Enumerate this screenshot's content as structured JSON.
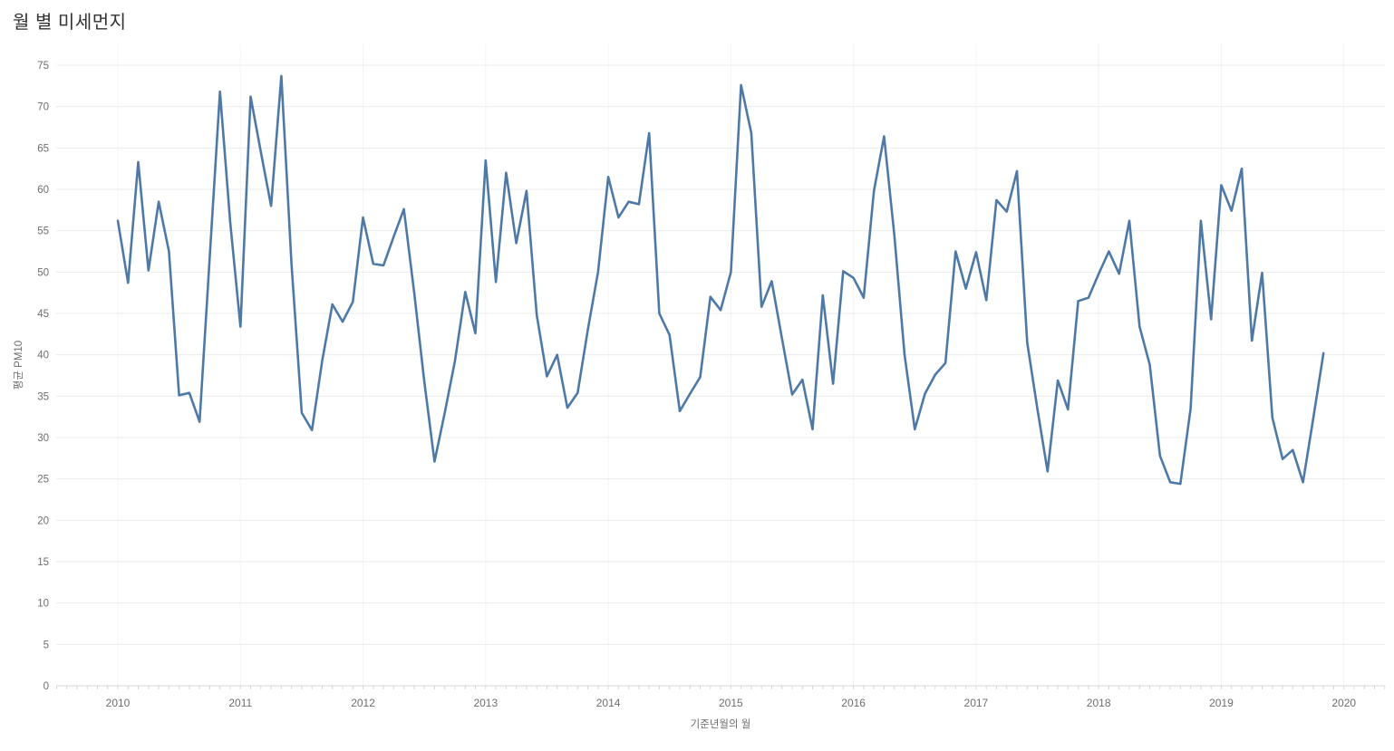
{
  "title": "월 별 미세먼지",
  "colors": {
    "line": "#4e79a7",
    "grid": "#ebebeb",
    "year_grid": "#f4f4f4",
    "axis_line": "#d7d7d7",
    "tick_label": "#6e6e6e",
    "title_text": "#323232"
  },
  "chart_data": {
    "type": "line",
    "title": "월 별 미세먼지",
    "xlabel": "기준년월의 월",
    "ylabel": "평균 PM10",
    "x_start": "2010-01",
    "x_end": "2019-11",
    "x_tick_labels": [
      "2010",
      "2011",
      "2012",
      "2013",
      "2014",
      "2015",
      "2016",
      "2017",
      "2018",
      "2019",
      "2020"
    ],
    "y_ticks": [
      0,
      5,
      10,
      15,
      20,
      25,
      30,
      35,
      40,
      45,
      50,
      55,
      60,
      65,
      70,
      75
    ],
    "ylim": [
      0,
      75
    ],
    "grid": true,
    "legend": "none",
    "series": [
      {
        "name": "평균 PM10",
        "monthly_values": [
          56.2,
          48.7,
          63.3,
          50.2,
          58.5,
          52.5,
          35.1,
          35.4,
          31.9,
          52.0,
          71.8,
          56.0,
          43.4,
          71.2,
          64.5,
          58.0,
          73.7,
          51.0,
          33.0,
          30.9,
          39.3,
          46.1,
          44.0,
          46.4,
          56.6,
          51.0,
          50.8,
          54.3,
          57.6,
          47.6,
          36.7,
          27.1,
          33.0,
          39.3,
          47.6,
          42.6,
          63.5,
          48.8,
          62.0,
          53.5,
          59.8,
          44.8,
          37.4,
          40.0,
          33.6,
          35.4,
          43.0,
          50.0,
          61.5,
          56.6,
          58.5,
          58.2,
          66.8,
          45.0,
          42.4,
          33.2,
          35.3,
          37.3,
          47.0,
          45.4,
          50.0,
          72.6,
          66.8,
          45.8,
          48.9,
          42.0,
          35.2,
          37.0,
          31.0,
          47.2,
          36.5,
          50.1,
          49.3,
          46.9,
          59.8,
          66.4,
          54.5,
          40.0,
          31.0,
          35.3,
          37.6,
          39.0,
          52.5,
          48.0,
          52.4,
          46.6,
          58.7,
          57.3,
          62.2,
          41.5,
          33.5,
          25.9,
          36.9,
          33.4,
          46.5,
          46.9,
          49.8,
          52.5,
          49.8,
          56.2,
          43.4,
          38.8,
          27.8,
          24.6,
          24.4,
          33.5,
          56.2,
          44.3,
          60.5,
          57.4,
          62.5,
          41.7,
          49.9,
          32.4,
          27.4,
          28.5,
          24.6,
          32.3,
          40.2
        ]
      }
    ]
  }
}
